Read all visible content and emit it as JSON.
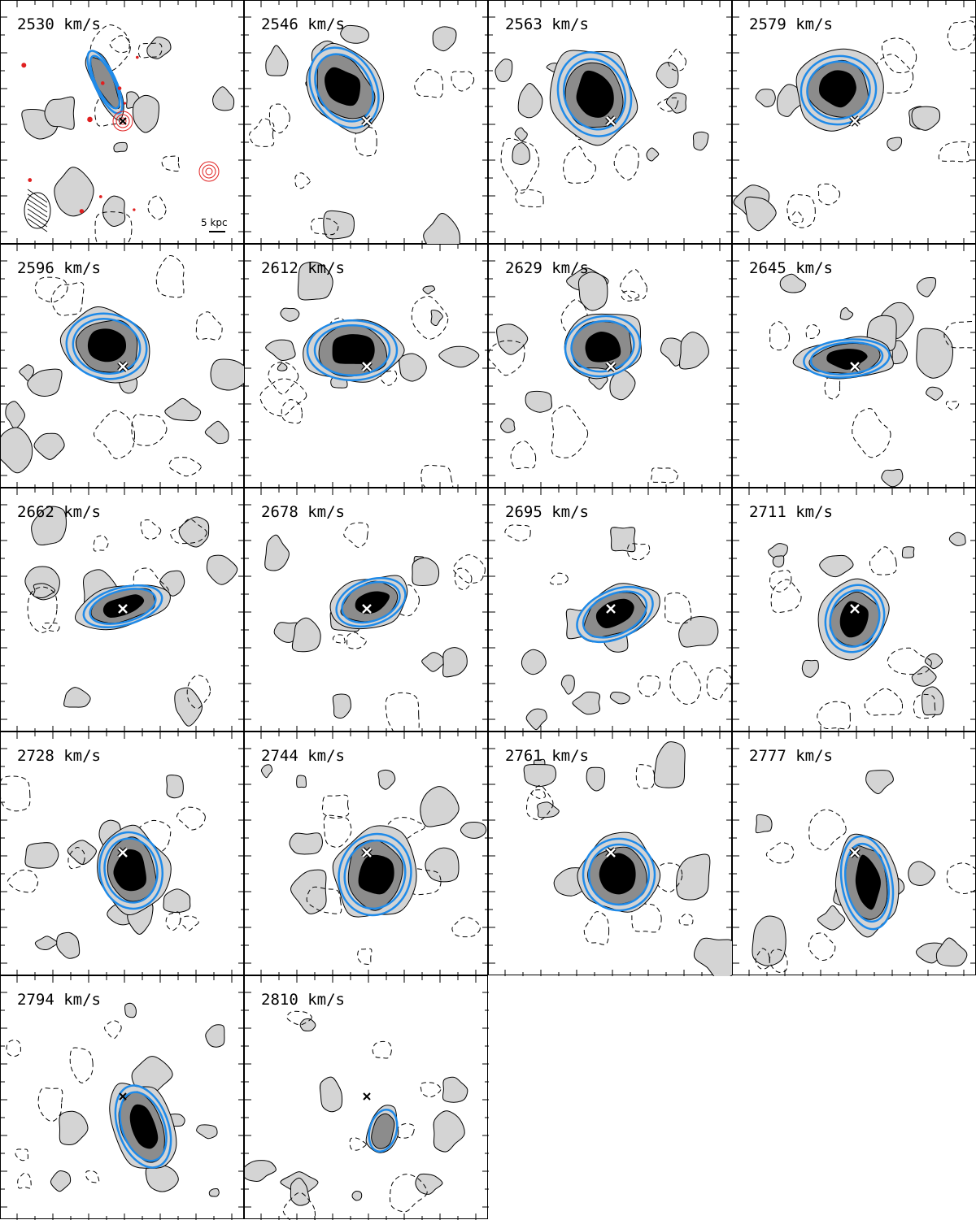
{
  "figure": {
    "columns": 4,
    "velocity_unit": "km/s",
    "scale_bar_label": "5 kpc",
    "colors": {
      "model_contour": "#1f8ae8",
      "optical_contour": "#e02020",
      "grey_light": "#d4d4d4",
      "grey_mid": "#8c8c8c",
      "grey_dark": "#000000"
    },
    "channels": [
      {
        "label": "2530 km/s",
        "marker": "optical"
      },
      {
        "label": "2546 km/s",
        "marker": "white-x"
      },
      {
        "label": "2563 km/s",
        "marker": "white-x"
      },
      {
        "label": "2579 km/s",
        "marker": "white-x"
      },
      {
        "label": "2596 km/s",
        "marker": "white-x"
      },
      {
        "label": "2612 km/s",
        "marker": "white-x"
      },
      {
        "label": "2629 km/s",
        "marker": "white-x"
      },
      {
        "label": "2645 km/s",
        "marker": "white-x"
      },
      {
        "label": "2662 km/s",
        "marker": "white-x"
      },
      {
        "label": "2678 km/s",
        "marker": "white-x"
      },
      {
        "label": "2695 km/s",
        "marker": "white-x"
      },
      {
        "label": "2711 km/s",
        "marker": "white-x"
      },
      {
        "label": "2728 km/s",
        "marker": "white-x"
      },
      {
        "label": "2744 km/s",
        "marker": "white-x"
      },
      {
        "label": "2761 km/s",
        "marker": "white-x"
      },
      {
        "label": "2777 km/s",
        "marker": "white-x"
      },
      {
        "label": "2794 km/s",
        "marker": "black-x"
      },
      {
        "label": "2810 km/s",
        "marker": "black-x"
      }
    ]
  }
}
